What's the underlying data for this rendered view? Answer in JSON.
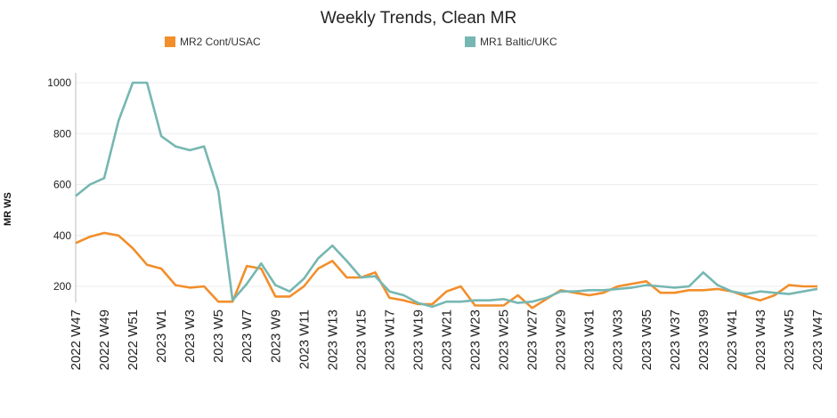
{
  "chart_data": {
    "type": "line",
    "title": "Weekly Trends, Clean MR",
    "xlabel": "",
    "ylabel": "MR WS",
    "ylim": [
      100,
      1000
    ],
    "yticks": [
      200,
      400,
      600,
      800,
      1000
    ],
    "grid": "horizontal",
    "legend_position": "top",
    "x_tick_labels": [
      "2022 W47",
      "2022 W49",
      "2022 W51",
      "2023 W1",
      "2023 W3",
      "2023 W5",
      "2023 W7",
      "2023 W9",
      "2023 W11",
      "2023 W13",
      "2023 W15",
      "2023 W17",
      "2023 W19",
      "2023 W21",
      "2023 W23",
      "2023 W25",
      "2023 W27",
      "2023 W29",
      "2023 W31",
      "2023 W33",
      "2023 W35",
      "2023 W37",
      "2023 W39",
      "2023 W41",
      "2023 W43",
      "2023 W45",
      "2023 W47"
    ],
    "x": [
      "2022 W47",
      "2022 W48",
      "2022 W49",
      "2022 W50",
      "2022 W51",
      "2022 W52",
      "2023 W1",
      "2023 W2",
      "2023 W3",
      "2023 W4",
      "2023 W5",
      "2023 W6",
      "2023 W7",
      "2023 W8",
      "2023 W9",
      "2023 W10",
      "2023 W11",
      "2023 W12",
      "2023 W13",
      "2023 W14",
      "2023 W15",
      "2023 W16",
      "2023 W17",
      "2023 W18",
      "2023 W19",
      "2023 W20",
      "2023 W21",
      "2023 W22",
      "2023 W23",
      "2023 W24",
      "2023 W25",
      "2023 W26",
      "2023 W27",
      "2023 W28",
      "2023 W29",
      "2023 W30",
      "2023 W31",
      "2023 W32",
      "2023 W33",
      "2023 W34",
      "2023 W35",
      "2023 W36",
      "2023 W37",
      "2023 W38",
      "2023 W39",
      "2023 W40",
      "2023 W41",
      "2023 W42",
      "2023 W43",
      "2023 W44",
      "2023 W45",
      "2023 W46",
      "2023 W47"
    ],
    "series": [
      {
        "name": "MR2 Cont/USAC",
        "color": "#f28e2b",
        "values": [
          370,
          395,
          410,
          400,
          350,
          285,
          270,
          205,
          195,
          200,
          140,
          140,
          280,
          270,
          160,
          160,
          200,
          270,
          300,
          235,
          235,
          255,
          155,
          145,
          130,
          130,
          180,
          200,
          125,
          125,
          125,
          165,
          115,
          150,
          185,
          175,
          165,
          175,
          200,
          210,
          220,
          175,
          175,
          185,
          185,
          190,
          180,
          160,
          145,
          165,
          205,
          200,
          200
        ]
      },
      {
        "name": "MR1 Baltic/UKC",
        "color": "#76b7b2",
        "values": [
          555,
          600,
          625,
          850,
          1000,
          1000,
          790,
          750,
          735,
          750,
          575,
          145,
          210,
          290,
          205,
          180,
          230,
          310,
          360,
          300,
          235,
          240,
          180,
          165,
          135,
          120,
          140,
          140,
          145,
          145,
          150,
          135,
          140,
          155,
          180,
          180,
          185,
          185,
          190,
          195,
          205,
          200,
          195,
          200,
          255,
          205,
          180,
          170,
          180,
          175,
          170,
          180,
          190
        ]
      }
    ]
  }
}
